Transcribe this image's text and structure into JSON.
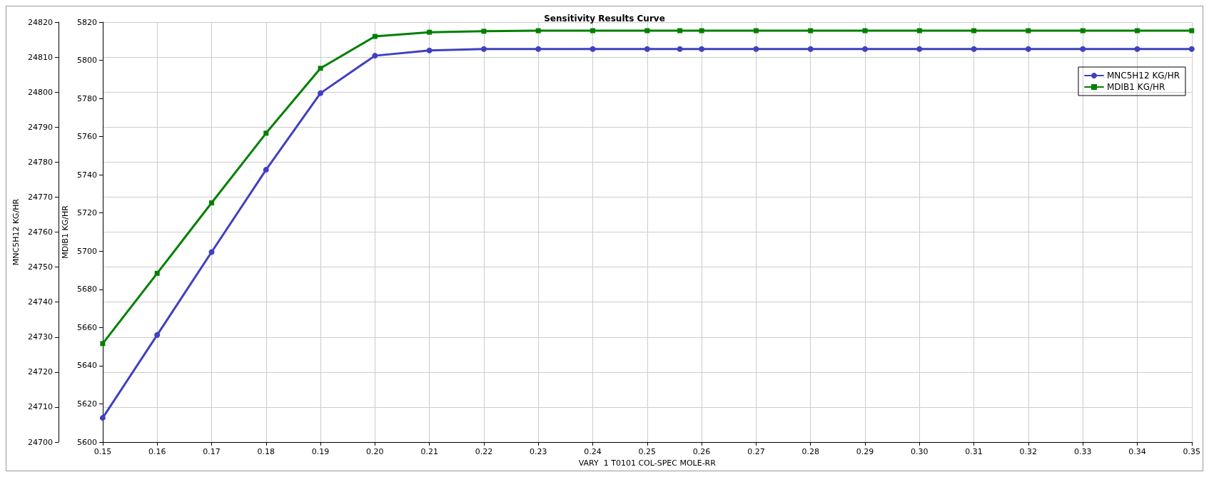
{
  "chart_data": {
    "type": "line",
    "title": "Sensitivity Results Curve",
    "xlabel": "VARY  1 T0101 COL-SPEC MOLE-RR",
    "ylabel": "MNC5H12 KG/HR",
    "y2label": "MDIB1 KG/HR",
    "x": [
      0.15,
      0.16,
      0.17,
      0.18,
      0.19,
      0.2,
      0.21,
      0.22,
      0.23,
      0.24,
      0.25,
      0.256,
      0.26,
      0.27,
      0.28,
      0.29,
      0.3,
      0.31,
      0.32,
      0.33,
      0.34,
      0.35
    ],
    "series": [
      {
        "name": "MNC5H12 KG/HR",
        "color": "#4040c0",
        "marker": "circle",
        "values": [
          24706.9,
          24730.6,
          24754.3,
          24777.8,
          24799.7,
          24810.4,
          24811.9,
          24812.3,
          24812.3,
          24812.3,
          24812.3,
          24812.3,
          24812.3,
          24812.3,
          24812.3,
          24812.3,
          24812.3,
          24812.3,
          24812.3,
          24812.3,
          24812.3,
          24812.3
        ]
      },
      {
        "name": "MDIB1 KG/HR",
        "color": "#008000",
        "marker": "square",
        "axis": "y2",
        "values": [
          5651.6,
          5688.4,
          5725.3,
          5761.8,
          5795.8,
          5812.5,
          5814.7,
          5815.2,
          5815.5,
          5815.5,
          5815.5,
          5815.5,
          5815.5,
          5815.5,
          5815.5,
          5815.5,
          5815.5,
          5815.5,
          5815.5,
          5815.5,
          5815.5,
          5815.5
        ]
      }
    ],
    "xlim": [
      0.15,
      0.35
    ],
    "xticks": [
      0.15,
      0.16,
      0.17,
      0.18,
      0.19,
      {
        "value": 0.2,
        "label": "0.20"
      },
      0.21,
      0.22,
      0.23,
      0.24,
      0.25,
      0.26,
      0.27,
      0.28,
      0.29,
      {
        "value": 0.3,
        "label": "0.30"
      },
      0.31,
      0.32,
      0.33,
      0.34,
      0.35
    ],
    "ylim": [
      24700,
      24820
    ],
    "yticks": [
      24700,
      24710,
      24720,
      24730,
      24740,
      24750,
      24760,
      24770,
      24780,
      24790,
      24800,
      24810,
      24820
    ],
    "y2lim": [
      5600,
      5820
    ],
    "y2ticks": [
      5600,
      5620,
      5640,
      5660,
      5680,
      5700,
      5720,
      5740,
      5760,
      5780,
      5800,
      5820
    ],
    "grid": true,
    "legend": "top right",
    "line_style": "solid"
  }
}
